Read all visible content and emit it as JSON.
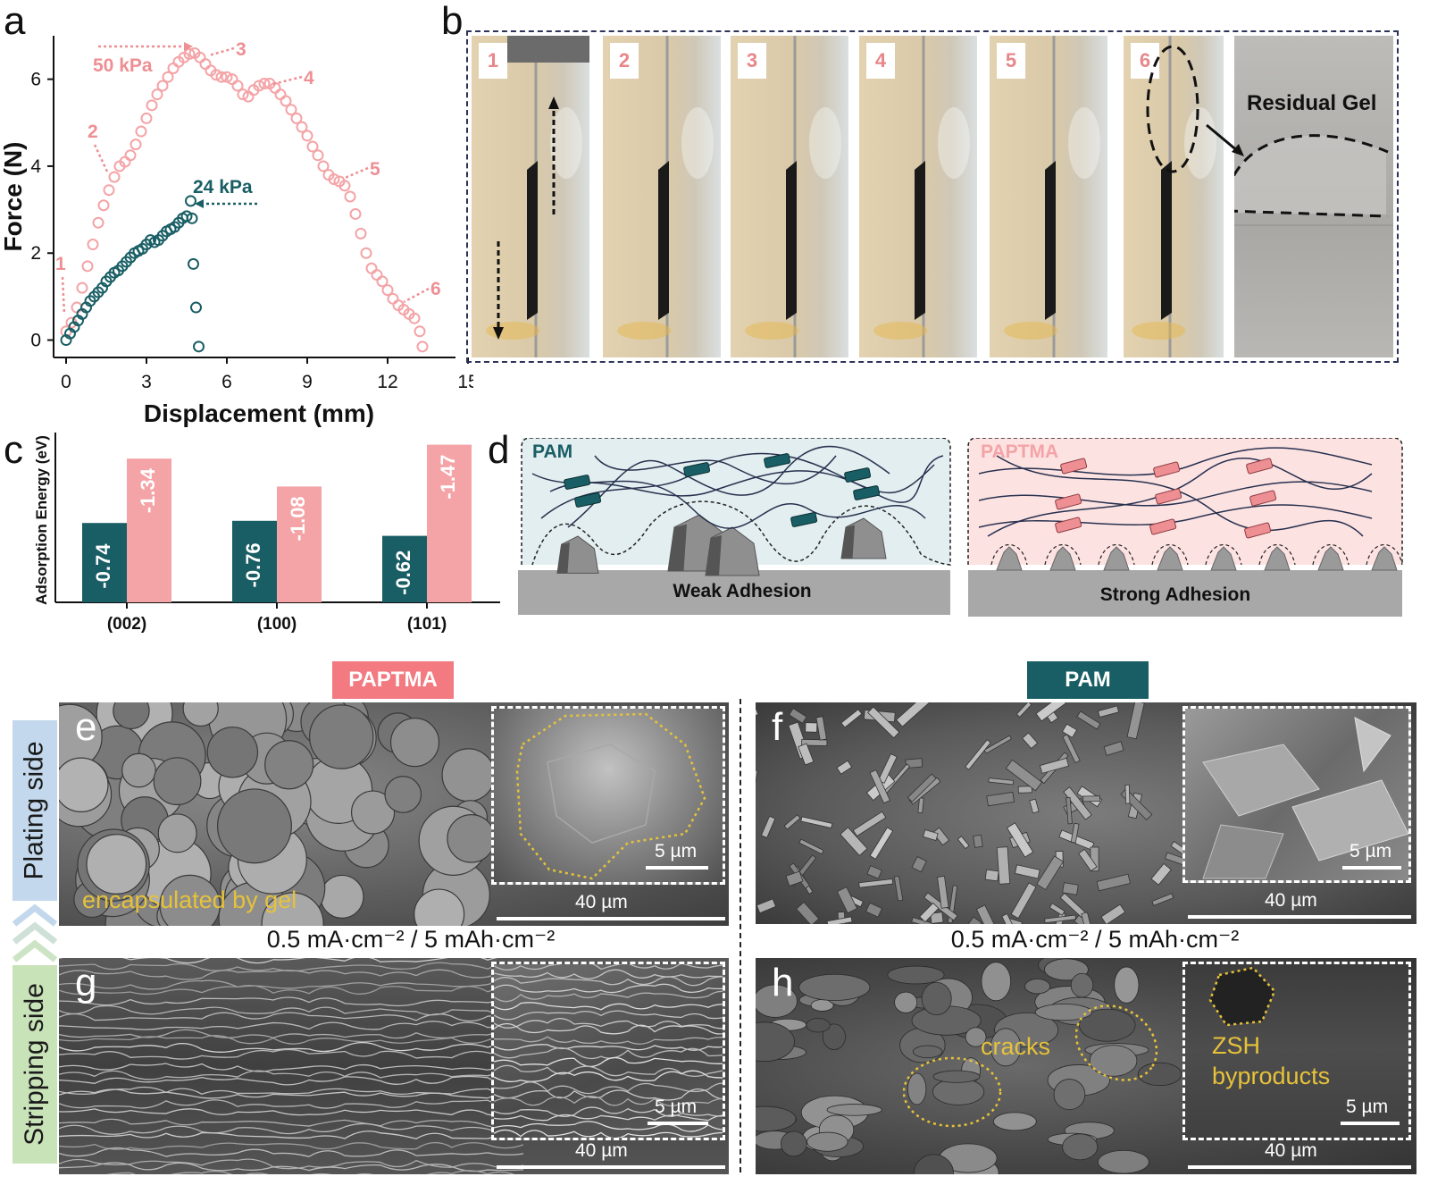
{
  "panels": {
    "a": "a",
    "b": "b",
    "c": "c",
    "d": "d",
    "e": "e",
    "f": "f",
    "g": "g",
    "h": "h"
  },
  "panel_a": {
    "ylabel": "Force (N)",
    "xlabel": "Displacement (mm)",
    "annotation_50": "50 kPa",
    "annotation_24": "24 kPa",
    "points": [
      "1",
      "2",
      "3",
      "4",
      "5",
      "6"
    ]
  },
  "panel_b": {
    "frames": [
      "1",
      "2",
      "3",
      "4",
      "5",
      "6"
    ],
    "residual_label": "Residual Gel"
  },
  "panel_c": {
    "ylabel": "Adsorption Energy (eV)"
  },
  "panel_d": {
    "left_label": "PAM",
    "left_caption": "Weak Adhesion",
    "right_label": "PAPTMA",
    "right_caption": "Strong Adhesion"
  },
  "sem": {
    "tag_left": "PAPTMA",
    "tag_right": "PAM",
    "side_top": "Plating side",
    "side_bottom": "Stripping side",
    "condition_left": "0.5 mA·cm⁻² / 5 mAh·cm⁻²",
    "condition_right": "0.5 mA·cm⁻² / 5 mAh·cm⁻²",
    "scale_large": "40 µm",
    "scale_small": "5 µm",
    "label_e": "encapsulated by gel",
    "label_h_cracks": "cracks",
    "label_h_zsh": "ZSH",
    "label_h_byproducts": "byproducts"
  },
  "colors": {
    "pink": "#f4a3a6",
    "teal": "#185e64",
    "pinkText": "#ee8f94",
    "tagPink": "#f27a80"
  },
  "chart_data": [
    {
      "type": "scatter",
      "title": "",
      "xlabel": "Displacement (mm)",
      "ylabel": "Force (N)",
      "xlim": [
        0,
        15
      ],
      "ylim": [
        0,
        6.8
      ],
      "xticks": [
        0,
        3,
        6,
        9,
        12,
        15
      ],
      "yticks": [
        0,
        2,
        4,
        6
      ],
      "legend": "none",
      "series": [
        {
          "name": "50 kPa",
          "x": [
            0.0,
            0.2,
            0.4,
            0.6,
            0.8,
            1.0,
            1.2,
            1.4,
            1.6,
            1.8,
            2.0,
            2.2,
            2.4,
            2.6,
            2.8,
            3.0,
            3.2,
            3.4,
            3.6,
            3.8,
            4.0,
            4.2,
            4.4,
            4.6,
            4.8,
            5.0,
            5.2,
            5.4,
            5.6,
            5.8,
            6.0,
            6.2,
            6.4,
            6.6,
            6.8,
            7.0,
            7.2,
            7.4,
            7.6,
            7.8,
            8.0,
            8.2,
            8.4,
            8.6,
            8.8,
            9.0,
            9.2,
            9.4,
            9.6,
            9.8,
            10.0,
            10.2,
            10.4,
            10.6,
            10.8,
            11.0,
            11.2,
            11.4,
            11.6,
            11.8,
            12.0,
            12.2,
            12.4,
            12.6,
            12.8,
            13.0,
            13.2,
            13.3
          ],
          "values": [
            0.2,
            0.4,
            0.75,
            1.2,
            1.7,
            2.2,
            2.7,
            3.1,
            3.45,
            3.75,
            4.0,
            4.1,
            4.25,
            4.5,
            4.8,
            5.1,
            5.4,
            5.65,
            5.85,
            6.05,
            6.25,
            6.4,
            6.5,
            6.58,
            6.6,
            6.5,
            6.35,
            6.2,
            6.1,
            6.05,
            6.05,
            6.0,
            5.85,
            5.65,
            5.6,
            5.75,
            5.85,
            5.9,
            5.9,
            5.8,
            5.65,
            5.5,
            5.3,
            5.1,
            4.9,
            4.7,
            4.45,
            4.25,
            4.0,
            3.8,
            3.7,
            3.65,
            3.55,
            3.3,
            2.9,
            2.45,
            2.0,
            1.65,
            1.5,
            1.35,
            1.15,
            0.95,
            0.8,
            0.7,
            0.6,
            0.5,
            0.2,
            -0.15
          ]
        },
        {
          "name": "24 kPa",
          "x": [
            0.0,
            0.15,
            0.3,
            0.45,
            0.6,
            0.75,
            0.9,
            1.05,
            1.2,
            1.35,
            1.5,
            1.65,
            1.8,
            1.95,
            2.1,
            2.25,
            2.4,
            2.55,
            2.7,
            2.85,
            3.0,
            3.15,
            3.3,
            3.45,
            3.6,
            3.75,
            3.9,
            4.05,
            4.2,
            4.35,
            4.5,
            4.65,
            4.7,
            4.75,
            4.85,
            4.95
          ],
          "values": [
            0.0,
            0.15,
            0.3,
            0.45,
            0.6,
            0.75,
            0.9,
            1.0,
            1.1,
            1.2,
            1.35,
            1.45,
            1.55,
            1.6,
            1.7,
            1.8,
            1.9,
            2.0,
            2.05,
            2.1,
            2.2,
            2.3,
            2.25,
            2.3,
            2.4,
            2.5,
            2.55,
            2.6,
            2.7,
            2.8,
            2.85,
            3.2,
            2.8,
            1.75,
            0.75,
            -0.15
          ]
        }
      ]
    },
    {
      "type": "bar",
      "title": "",
      "ylabel": "Adsorption Energy (eV)",
      "categories": [
        "(002)",
        "(100)",
        "(101)"
      ],
      "series": [
        {
          "values": [
            -0.74,
            -0.76,
            -0.62
          ]
        },
        {
          "values": [
            -1.34,
            -1.08,
            -1.47
          ]
        }
      ],
      "data_labels": [
        [
          "-0.74",
          "-1.34"
        ],
        [
          "-0.76",
          "-1.08"
        ],
        [
          "-0.62",
          "-1.47"
        ]
      ],
      "ylim": [
        -1.5,
        0
      ],
      "legend": "none"
    }
  ]
}
